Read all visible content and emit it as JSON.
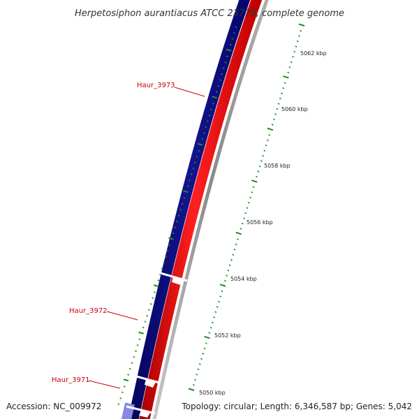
{
  "title": "Herpetosiphon aurantiacus ATCC 23779, complete genome",
  "accession": "Accession: NC_009972",
  "topology": "Topology: circular; Length: 6,346,587 bp; Genes: 5,042",
  "colors": {
    "forward_strand": "#0a0a8c",
    "reverse_strand": "#ff0a0a",
    "backbone": "#9a9a9a",
    "ticks": "#228b22",
    "gene_label": "#cc0000",
    "partial_gene": "#8b86e0"
  },
  "scale_labels": [
    "5050 kbp",
    "5052 kbp",
    "5054 kbp",
    "5056 kbp",
    "5058 kbp",
    "5060 kbp",
    "5062 kbp"
  ],
  "gene_labels": [
    "Haur_3971",
    "Haur_3972",
    "Haur_3973"
  ]
}
